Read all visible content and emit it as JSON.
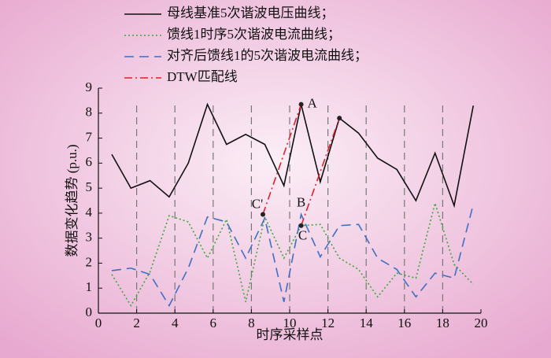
{
  "chart_data": {
    "type": "line",
    "x_label": "时序采样点",
    "y_label": "数据变化趋势 (p.u.)",
    "x": [
      0.7,
      1.7,
      2.7,
      3.7,
      4.7,
      5.7,
      6.7,
      7.7,
      8.7,
      9.7,
      10.6,
      11.6,
      12.6,
      13.6,
      14.6,
      15.6,
      16.6,
      17.6,
      18.6,
      19.6
    ],
    "series": [
      {
        "name": "母线基准5次谐波电压曲线；",
        "color": "#111111",
        "dash": "solid",
        "values": [
          6.35,
          5.0,
          5.3,
          4.65,
          6.0,
          8.35,
          6.75,
          7.15,
          6.75,
          5.1,
          8.35,
          5.25,
          7.8,
          7.2,
          6.2,
          5.75,
          4.5,
          6.4,
          4.3,
          8.3
        ]
      },
      {
        "name": "馈线1时序5次谐波电流曲线；",
        "color": "#3aa83a",
        "dash": "dotted",
        "values": [
          1.55,
          0.3,
          1.65,
          3.9,
          3.65,
          2.2,
          3.75,
          0.45,
          3.85,
          2.2,
          3.5,
          3.55,
          2.2,
          1.75,
          0.65,
          1.6,
          1.4,
          4.4,
          1.95,
          1.15
        ]
      },
      {
        "name": "对齐后馈线1的5次谐波电流曲线；",
        "color": "#3f6fc4",
        "dash": "dashed",
        "values": [
          1.7,
          1.8,
          1.55,
          0.3,
          1.8,
          3.85,
          3.65,
          2.2,
          3.8,
          0.45,
          3.95,
          2.25,
          3.5,
          3.55,
          2.2,
          1.75,
          0.65,
          1.6,
          1.4,
          4.35
        ]
      },
      {
        "name": "DTW匹配线",
        "color": "#e0202a",
        "dash": "dashdot",
        "markers": true,
        "x": [
          8.6,
          10.6,
          10.6,
          10.6,
          12.6
        ],
        "values": [
          3.95,
          8.35,
          null,
          3.5,
          7.8
        ]
      }
    ],
    "annotations": [
      {
        "text": "A",
        "x": 10.6,
        "y": 8.35,
        "position": "right"
      },
      {
        "text": "C'",
        "x": 8.6,
        "y": 3.95,
        "position": "upper-left"
      },
      {
        "text": "B",
        "x": 10.6,
        "y": 3.95,
        "position": "above"
      },
      {
        "text": "C",
        "x": 10.6,
        "y": 3.5,
        "position": "below"
      }
    ],
    "vlines": [
      2,
      4,
      6,
      8,
      10,
      12,
      14,
      16,
      18
    ],
    "xlim": [
      0,
      20
    ],
    "xticks": [
      0,
      2,
      4,
      6,
      8,
      10,
      12,
      14,
      16,
      18,
      20
    ],
    "ylim": [
      0,
      9
    ],
    "yticks": [
      0,
      1,
      2,
      3,
      4,
      5,
      6,
      7,
      8,
      9
    ],
    "legend": "top"
  }
}
